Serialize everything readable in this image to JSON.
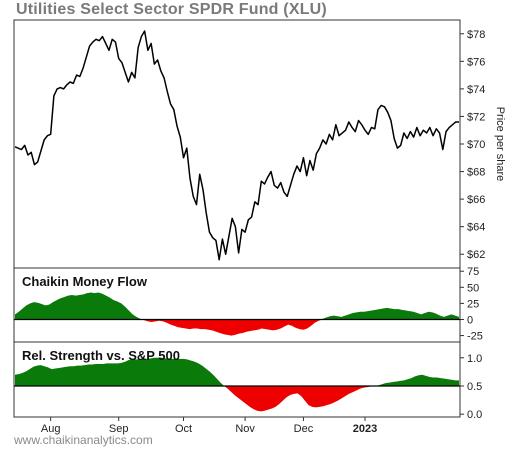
{
  "title": "Utilities Select Sector SPDR Fund (XLU)",
  "watermark": "www.chaikinanalytics.com",
  "colors": {
    "price_line": "#000000",
    "positive": "#0a7a0a",
    "negative": "#ee0000",
    "frame": "#333333"
  },
  "chart_data": [
    {
      "type": "line",
      "title": "Utilities Select Sector SPDR Fund (XLU)",
      "ylabel": "Price per share",
      "ylim": [
        61,
        79
      ],
      "y_ticks": [
        "$78",
        "$76",
        "$74",
        "$72",
        "$70",
        "$68",
        "$66",
        "$64",
        "$62"
      ],
      "y_tick_values": [
        78,
        76,
        74,
        72,
        70,
        68,
        66,
        64,
        62
      ],
      "x_labels": [
        "Aug",
        "Sep",
        "Oct",
        "Nov",
        "Dec",
        "2023"
      ],
      "x_label_index": [
        11,
        32,
        52,
        71,
        89,
        108
      ],
      "series": [
        {
          "values": [
            69.8,
            69.7,
            69.6,
            69.9,
            69.2,
            69.4,
            68.5,
            68.7,
            69.5,
            70.3,
            70.6,
            70.7,
            73.5,
            74.0,
            74.1,
            74.0,
            74.3,
            74.5,
            74.4,
            75.0,
            74.9,
            75.5,
            76.3,
            77.1,
            77.4,
            77.6,
            77.5,
            77.8,
            77.3,
            76.8,
            77.6,
            77.4,
            76.2,
            75.9,
            75.2,
            74.5,
            75.2,
            74.8,
            77.0,
            77.8,
            78.2,
            76.8,
            77.3,
            75.8,
            76.1,
            75.3,
            74.8,
            73.8,
            72.9,
            72.5,
            71.3,
            70.5,
            69.0,
            69.7,
            67.5,
            66.2,
            65.6,
            67.8,
            66.7,
            65.0,
            63.6,
            63.2,
            63.0,
            61.6,
            63.1,
            62.0,
            63.3,
            64.6,
            64.0,
            62.1,
            63.8,
            63.6,
            64.5,
            64.7,
            65.8,
            65.6,
            67.3,
            67.1,
            67.6,
            68.0,
            67.0,
            66.8,
            67.2,
            66.5,
            66.2,
            67.0,
            67.8,
            68.4,
            68.0,
            69.0,
            67.7,
            68.8,
            68.1,
            69.3,
            69.7,
            70.3,
            70.0,
            70.7,
            70.3,
            71.4,
            70.6,
            70.8,
            71.0,
            71.6,
            71.2,
            70.9,
            71.7,
            71.4,
            71.0,
            70.7,
            71.2,
            71.1,
            72.5,
            72.8,
            72.7,
            72.3,
            71.7,
            70.4,
            69.7,
            69.9,
            70.8,
            70.4,
            70.9,
            70.5,
            71.2,
            70.6,
            71.0,
            70.8,
            71.2,
            70.6,
            71.1,
            70.8,
            69.6,
            70.9,
            71.2,
            71.4,
            71.6,
            71.6
          ]
        }
      ]
    },
    {
      "type": "area",
      "title": "Chaikin Money Flow",
      "ylim": [
        -35,
        80
      ],
      "y_ticks": [
        "75",
        "50",
        "25",
        "0",
        "-25"
      ],
      "y_tick_values": [
        75,
        50,
        25,
        0,
        -25
      ],
      "baseline": 0,
      "series": [
        {
          "values": [
            8,
            12,
            17,
            22,
            25,
            27,
            26,
            24,
            22,
            23,
            27,
            30,
            33,
            35,
            37,
            38,
            37,
            38,
            39,
            41,
            42,
            41,
            42,
            40,
            37,
            34,
            30,
            28,
            25,
            20,
            14,
            8,
            4,
            1,
            -1,
            -3,
            -4,
            -3,
            -2,
            -3,
            -5,
            -8,
            -10,
            -12,
            -13,
            -14,
            -15,
            -14,
            -14,
            -15,
            -15,
            -16,
            -17,
            -19,
            -21,
            -23,
            -24,
            -25,
            -24,
            -22,
            -21,
            -19,
            -18,
            -17,
            -16,
            -14,
            -15,
            -16,
            -17,
            -16,
            -14,
            -11,
            -8,
            -10,
            -13,
            -15,
            -16,
            -14,
            -10,
            -5,
            -2,
            1,
            3,
            5,
            6,
            5,
            4,
            6,
            8,
            10,
            11,
            12,
            12,
            13,
            14,
            15,
            16,
            17,
            18,
            17,
            16,
            16,
            15,
            14,
            13,
            12,
            10,
            8,
            10,
            12,
            11,
            9,
            6,
            4,
            6,
            8,
            6,
            4
          ]
        }
      ]
    },
    {
      "type": "area",
      "title": "Rel. Strength vs. S&P 500",
      "ylim": [
        -0.05,
        1.28
      ],
      "y_ticks": [
        "1.0",
        "0.5",
        "0.0"
      ],
      "y_tick_values": [
        1.0,
        0.5,
        0.0
      ],
      "baseline": 0.5,
      "series": [
        {
          "values": [
            0.7,
            0.71,
            0.73,
            0.76,
            0.8,
            0.84,
            0.86,
            0.87,
            0.85,
            0.83,
            0.8,
            0.81,
            0.82,
            0.83,
            0.84,
            0.85,
            0.85,
            0.86,
            0.86,
            0.87,
            0.88,
            0.88,
            0.89,
            0.89,
            0.89,
            0.9,
            0.9,
            0.9,
            0.9,
            0.91,
            0.93,
            0.96,
            0.97,
            0.97,
            0.98,
            0.98,
            0.98,
            0.99,
            1.0,
            1.0,
            1.0,
            0.99,
            0.99,
            0.98,
            0.98,
            0.98,
            0.98,
            0.97,
            0.95,
            0.93,
            0.9,
            0.86,
            0.81,
            0.76,
            0.7,
            0.63,
            0.56,
            0.5,
            0.45,
            0.39,
            0.33,
            0.28,
            0.23,
            0.18,
            0.13,
            0.09,
            0.06,
            0.05,
            0.06,
            0.08,
            0.1,
            0.13,
            0.18,
            0.24,
            0.3,
            0.34,
            0.36,
            0.37,
            0.32,
            0.24,
            0.16,
            0.13,
            0.12,
            0.13,
            0.14,
            0.16,
            0.18,
            0.21,
            0.24,
            0.28,
            0.32,
            0.36,
            0.39,
            0.42,
            0.45,
            0.47,
            0.48,
            0.49,
            0.5,
            0.51,
            0.53,
            0.55,
            0.56,
            0.57,
            0.58,
            0.59,
            0.6,
            0.62,
            0.64,
            0.67,
            0.69,
            0.7,
            0.68,
            0.66,
            0.65,
            0.65,
            0.64,
            0.63,
            0.62,
            0.61,
            0.6,
            0.6
          ]
        }
      ]
    }
  ]
}
